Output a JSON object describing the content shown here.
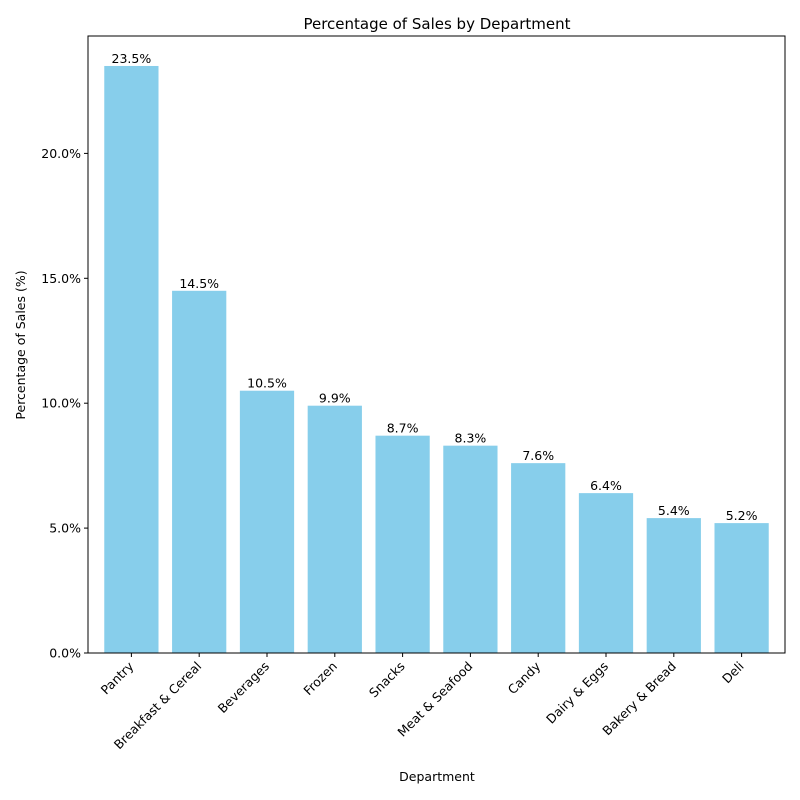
{
  "chart_data": {
    "type": "bar",
    "title": "Percentage of Sales by Department",
    "xlabel": "Department",
    "ylabel": "Percentage of Sales (%)",
    "categories": [
      "Pantry",
      "Breakfast & Cereal",
      "Beverages",
      "Frozen",
      "Snacks",
      "Meat & Seafood",
      "Candy",
      "Dairy & Eggs",
      "Bakery & Bread",
      "Deli"
    ],
    "values": [
      23.5,
      14.5,
      10.5,
      9.9,
      8.7,
      8.3,
      7.6,
      6.4,
      5.4,
      5.2
    ],
    "value_labels": [
      "23.5%",
      "14.5%",
      "10.5%",
      "9.9%",
      "8.7%",
      "8.3%",
      "7.6%",
      "6.4%",
      "5.4%",
      "5.2%"
    ],
    "yticks": [
      0,
      5,
      10,
      15,
      20
    ],
    "ytick_labels": [
      "0.0%",
      "5.0%",
      "10.0%",
      "15.0%",
      "20.0%"
    ],
    "ylim": [
      0,
      24.7
    ],
    "grid": false,
    "bar_color": "#87ceeb"
  }
}
